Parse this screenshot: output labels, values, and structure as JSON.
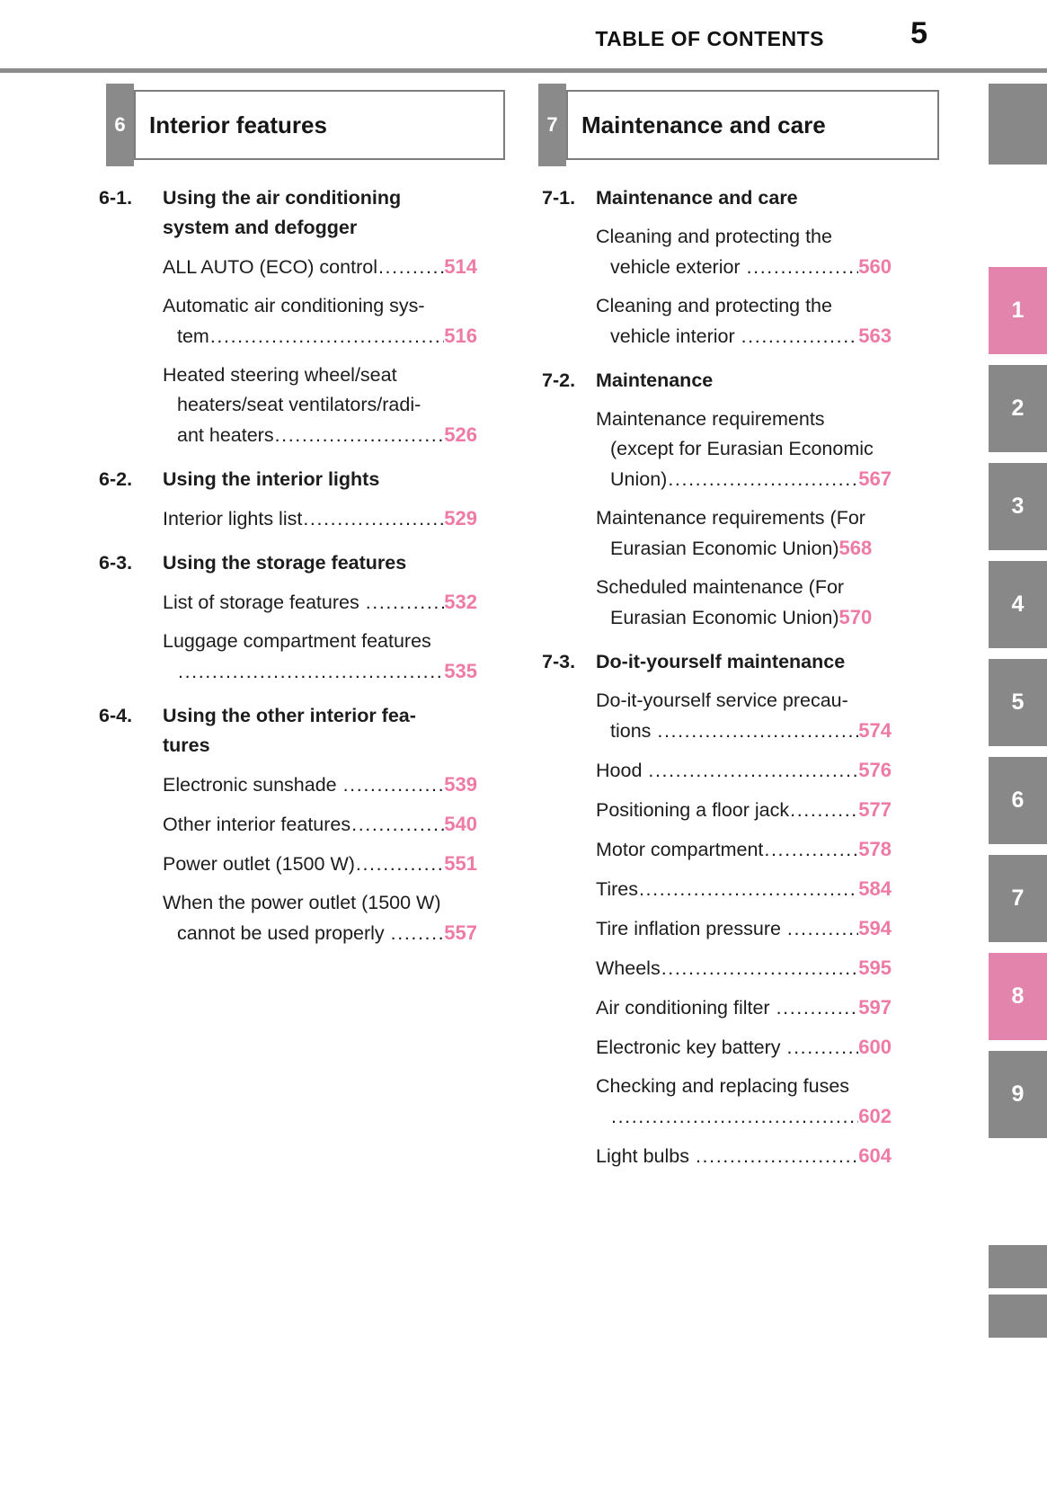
{
  "header": {
    "title": "TABLE OF CONTENTS",
    "page_number": "5"
  },
  "colors": {
    "text": "#1c1c1c",
    "page_ref_pink": "#ee7aa5",
    "tab_pink": "#e384ac",
    "tab_gray": "#888888",
    "rule_gray": "#8c8c8c",
    "section_number_gray": "#8a8a8a",
    "box_border_gray": "#7d7d7d"
  },
  "sections": [
    {
      "number": "6",
      "title": "Interior features",
      "column": "left",
      "groups": [
        {
          "number": "6-1.",
          "title_lines": [
            "Using the air conditioning",
            "system and defogger"
          ],
          "entries": [
            {
              "lines": [
                "ALL AUTO (ECO) control"
              ],
              "page": "514"
            },
            {
              "lines": [
                "Automatic air conditioning sys-",
                "tem"
              ],
              "page": "516"
            },
            {
              "lines": [
                "Heated steering wheel/seat",
                "heaters/seat ventilators/radi-",
                "ant heaters"
              ],
              "page": "526"
            }
          ]
        },
        {
          "number": "6-2.",
          "title_lines": [
            "Using the interior lights"
          ],
          "entries": [
            {
              "lines": [
                "Interior lights list"
              ],
              "page": "529"
            }
          ]
        },
        {
          "number": "6-3.",
          "title_lines": [
            "Using the storage features"
          ],
          "entries": [
            {
              "lines": [
                "List of storage features "
              ],
              "page": "532"
            },
            {
              "lines": [
                "Luggage compartment features",
                ""
              ],
              "page": "535"
            }
          ]
        },
        {
          "number": "6-4.",
          "title_lines": [
            "Using the other interior fea-",
            "tures"
          ],
          "entries": [
            {
              "lines": [
                "Electronic sunshade "
              ],
              "page": "539"
            },
            {
              "lines": [
                "Other interior features"
              ],
              "page": "540"
            },
            {
              "lines": [
                "Power outlet (1500 W)"
              ],
              "page": "551"
            },
            {
              "lines": [
                "When the power outlet (1500 W)",
                "cannot be used properly "
              ],
              "page": "557"
            }
          ]
        }
      ]
    },
    {
      "number": "7",
      "title": "Maintenance and care",
      "column": "right",
      "groups": [
        {
          "number": "7-1.",
          "title_lines": [
            "Maintenance and care"
          ],
          "entries": [
            {
              "lines": [
                "Cleaning and protecting the",
                "vehicle exterior "
              ],
              "page": "560"
            },
            {
              "lines": [
                "Cleaning and protecting the",
                "vehicle interior "
              ],
              "page": "563"
            }
          ]
        },
        {
          "number": "7-2.",
          "title_lines": [
            "Maintenance"
          ],
          "entries": [
            {
              "lines": [
                "Maintenance requirements",
                "(except for Eurasian Economic",
                "Union)"
              ],
              "page": "567"
            },
            {
              "lines": [
                "Maintenance requirements (For",
                "Eurasian Economic Union)"
              ],
              "page": "568",
              "no_leader": true
            },
            {
              "lines": [
                "Scheduled maintenance (For",
                "Eurasian Economic Union)"
              ],
              "page": "570",
              "no_leader": true
            }
          ]
        },
        {
          "number": "7-3.",
          "title_lines": [
            "Do-it-yourself maintenance"
          ],
          "entries": [
            {
              "lines": [
                "Do-it-yourself service precau-",
                "tions "
              ],
              "page": "574"
            },
            {
              "lines": [
                "Hood "
              ],
              "page": "576"
            },
            {
              "lines": [
                "Positioning a floor jack"
              ],
              "page": "577"
            },
            {
              "lines": [
                "Motor compartment"
              ],
              "page": "578"
            },
            {
              "lines": [
                "Tires"
              ],
              "page": "584"
            },
            {
              "lines": [
                "Tire inflation pressure "
              ],
              "page": "594"
            },
            {
              "lines": [
                "Wheels"
              ],
              "page": "595"
            },
            {
              "lines": [
                "Air conditioning filter "
              ],
              "page": "597"
            },
            {
              "lines": [
                "Electronic key battery "
              ],
              "page": "600"
            },
            {
              "lines": [
                "Checking and replacing fuses",
                ""
              ],
              "page": "602"
            },
            {
              "lines": [
                "Light bulbs "
              ],
              "page": "604"
            }
          ]
        }
      ]
    }
  ],
  "side_rail": {
    "top_block": {
      "label": ""
    },
    "tabs": [
      {
        "label": "1",
        "highlighted": true
      },
      {
        "label": "2",
        "highlighted": false
      },
      {
        "label": "3",
        "highlighted": false
      },
      {
        "label": "4",
        "highlighted": false
      },
      {
        "label": "5",
        "highlighted": false
      },
      {
        "label": "6",
        "highlighted": false
      },
      {
        "label": "7",
        "highlighted": false
      },
      {
        "label": "8",
        "highlighted": true
      },
      {
        "label": "9",
        "highlighted": false
      }
    ],
    "bottom_blocks": [
      {
        "label": ""
      },
      {
        "label": ""
      }
    ]
  }
}
